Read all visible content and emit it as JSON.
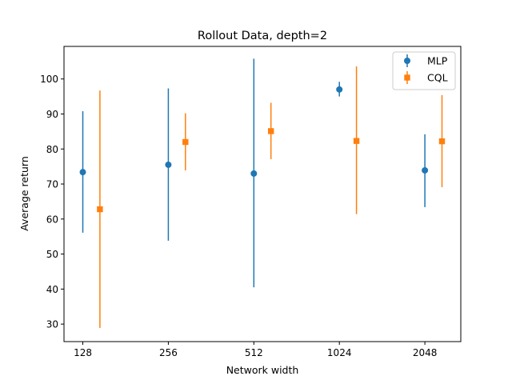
{
  "chart_data": {
    "type": "scatter",
    "title": "Rollout Data, depth=2",
    "xlabel": "Network width",
    "ylabel": "Average return",
    "categories": [
      "128",
      "256",
      "512",
      "1024",
      "2048"
    ],
    "ylim": [
      25,
      109.3
    ],
    "yticks": [
      30,
      40,
      50,
      60,
      70,
      80,
      90,
      100
    ],
    "grid": false,
    "legend_position": "top-right",
    "series": [
      {
        "name": "MLP",
        "color": "#1f77b4",
        "marker": "circle",
        "offset": 0,
        "values": [
          73.4,
          75.5,
          73.0,
          97.0,
          73.9
        ],
        "err_low": [
          56.1,
          53.8,
          40.5,
          95.0,
          63.4
        ],
        "err_high": [
          90.8,
          97.3,
          105.8,
          99.2,
          84.2
        ]
      },
      {
        "name": "CQL",
        "color": "#ff7f0e",
        "marker": "square",
        "offset": 0.2,
        "values": [
          62.8,
          82.0,
          85.1,
          82.3,
          82.2
        ],
        "err_low": [
          28.9,
          73.9,
          77.1,
          61.4,
          69.1
        ],
        "err_high": [
          96.7,
          90.2,
          93.2,
          103.6,
          95.4
        ]
      }
    ]
  }
}
